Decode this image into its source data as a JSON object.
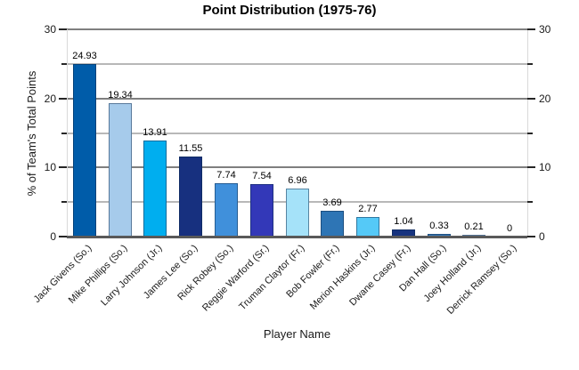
{
  "chart_data": {
    "type": "bar",
    "title": "Point Distribution (1975-76)",
    "xlabel": "Player Name",
    "ylabel": "% of Team's Total Points",
    "ylim": [
      0,
      30
    ],
    "yticks_labeled": [
      0,
      10,
      20,
      30
    ],
    "yticks_minor": [
      5,
      15,
      25
    ],
    "grid": true,
    "legend": false,
    "categories": [
      "Jack Givens (So.)",
      "Mike Phillips (So.)",
      "Larry Johnson (Jr.)",
      "James Lee (So.)",
      "Rick Robey (So.)",
      "Reggie Warford (Sr.)",
      "Truman Claytor (Fr.)",
      "Bob Fowler (Fr.)",
      "Merion Haskins (Jr.)",
      "Dwane Casey (Fr.)",
      "Dan Hall (So.)",
      "Joey Holland (Jr.)",
      "Derrick Ramsey (So.)"
    ],
    "values": [
      24.93,
      19.34,
      13.91,
      11.55,
      7.74,
      7.54,
      6.96,
      3.69,
      2.77,
      1.04,
      0.33,
      0.21,
      0
    ],
    "value_labels": [
      "24.93",
      "19.34",
      "13.91",
      "11.55",
      "7.74",
      "7.54",
      "6.96",
      "3.69",
      "2.77",
      "1.04",
      "0.33",
      "0.21",
      "0"
    ],
    "bar_colors": [
      "#005CA9",
      "#A6CBEB",
      "#00AEEF",
      "#17307F",
      "#4090DB",
      "#3338B8",
      "#A5E2F9",
      "#2E75B5",
      "#55C9F7",
      "#17337F",
      "#3476B5",
      "#9FC0DF",
      "#9FC0DF"
    ]
  },
  "style": {
    "major_grid": "#7F7F7F",
    "minor_grid": "#B8B8B8",
    "baseline": "#595959",
    "tick_color": "#262626",
    "bar_border": "rgba(10,40,75,0.5)"
  }
}
